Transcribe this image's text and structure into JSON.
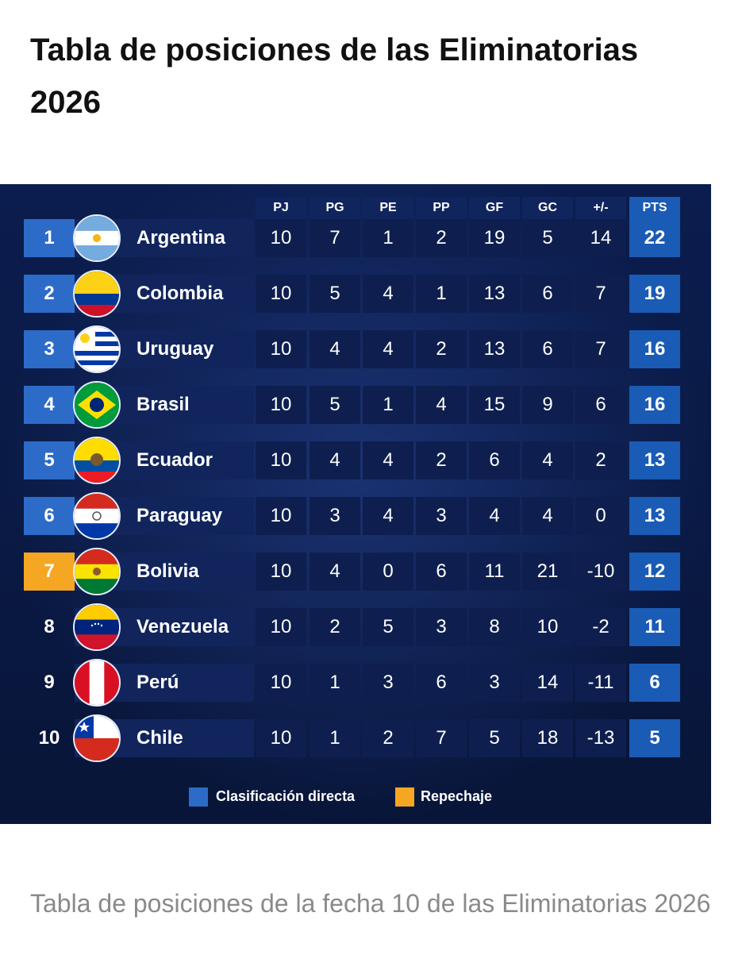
{
  "title": "Tabla de posiciones de las Eliminatorias 2026",
  "caption": "Tabla de posiciones de la fecha 10 de las Eliminatorias 2026",
  "colors": {
    "directa": "#2d6bc8",
    "repechaje": "#f5a623",
    "background": "#0b1d4e"
  },
  "table": {
    "headers": [
      "PJ",
      "PG",
      "PE",
      "PP",
      "GF",
      "GC",
      "+/-",
      "PTS"
    ],
    "rows": [
      {
        "pos": "1",
        "team": "Argentina",
        "flag": "argentina-flag",
        "zone": "directa",
        "pj": "10",
        "pg": "7",
        "pe": "1",
        "pp": "2",
        "gf": "19",
        "gc": "5",
        "dif": "14",
        "pts": "22"
      },
      {
        "pos": "2",
        "team": "Colombia",
        "flag": "colombia-flag",
        "zone": "directa",
        "pj": "10",
        "pg": "5",
        "pe": "4",
        "pp": "1",
        "gf": "13",
        "gc": "6",
        "dif": "7",
        "pts": "19"
      },
      {
        "pos": "3",
        "team": "Uruguay",
        "flag": "uruguay-flag",
        "zone": "directa",
        "pj": "10",
        "pg": "4",
        "pe": "4",
        "pp": "2",
        "gf": "13",
        "gc": "6",
        "dif": "7",
        "pts": "16"
      },
      {
        "pos": "4",
        "team": "Brasil",
        "flag": "brazil-flag",
        "zone": "directa",
        "pj": "10",
        "pg": "5",
        "pe": "1",
        "pp": "4",
        "gf": "15",
        "gc": "9",
        "dif": "6",
        "pts": "16"
      },
      {
        "pos": "5",
        "team": "Ecuador",
        "flag": "ecuador-flag",
        "zone": "directa",
        "pj": "10",
        "pg": "4",
        "pe": "4",
        "pp": "2",
        "gf": "6",
        "gc": "4",
        "dif": "2",
        "pts": "13"
      },
      {
        "pos": "6",
        "team": "Paraguay",
        "flag": "paraguay-flag",
        "zone": "directa",
        "pj": "10",
        "pg": "3",
        "pe": "4",
        "pp": "3",
        "gf": "4",
        "gc": "4",
        "dif": "0",
        "pts": "13"
      },
      {
        "pos": "7",
        "team": "Bolivia",
        "flag": "bolivia-flag",
        "zone": "repechaje",
        "pj": "10",
        "pg": "4",
        "pe": "0",
        "pp": "6",
        "gf": "11",
        "gc": "21",
        "dif": "-10",
        "pts": "12"
      },
      {
        "pos": "8",
        "team": "Venezuela",
        "flag": "venezuela-flag",
        "zone": "none",
        "pj": "10",
        "pg": "2",
        "pe": "5",
        "pp": "3",
        "gf": "8",
        "gc": "10",
        "dif": "-2",
        "pts": "11"
      },
      {
        "pos": "9",
        "team": "Perú",
        "flag": "peru-flag",
        "zone": "none",
        "pj": "10",
        "pg": "1",
        "pe": "3",
        "pp": "6",
        "gf": "3",
        "gc": "14",
        "dif": "-11",
        "pts": "6"
      },
      {
        "pos": "10",
        "team": "Chile",
        "flag": "chile-flag",
        "zone": "none",
        "pj": "10",
        "pg": "1",
        "pe": "2",
        "pp": "7",
        "gf": "5",
        "gc": "18",
        "dif": "-13",
        "pts": "5"
      }
    ]
  },
  "legend": {
    "directa": "Clasificación directa",
    "repechaje": "Repechaje"
  }
}
